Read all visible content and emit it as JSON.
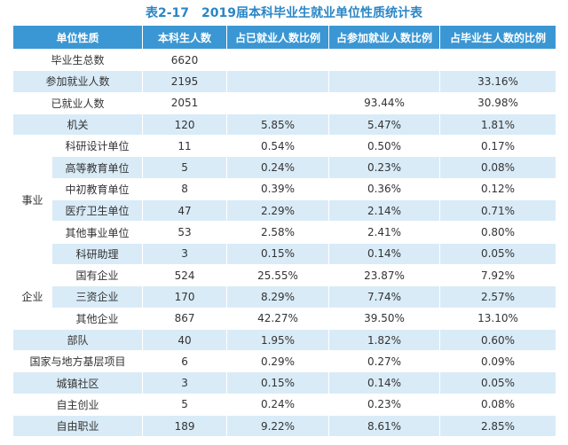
{
  "title": "表2-17　2019届本科毕业生就业单位性质统计表",
  "table": {
    "header": [
      "单位性质",
      "本科生人数",
      "占已就业人数比例",
      "占参加就业人数比例",
      "占毕业生人数的比例"
    ],
    "rows": [
      {
        "label": "毕业生总数",
        "cells": [
          "6620",
          null,
          null,
          null
        ]
      },
      {
        "label": "参加就业人数",
        "cells": [
          "2195",
          null,
          null,
          "33.16%"
        ]
      },
      {
        "label": "已就业人数",
        "cells": [
          "2051",
          null,
          "93.44%",
          "30.98%"
        ]
      },
      {
        "label": "机关",
        "cells": [
          "120",
          "5.85%",
          "5.47%",
          "1.81%"
        ]
      },
      {
        "group": "事业",
        "rows": [
          {
            "label": "科研设计单位",
            "cells": [
              "11",
              "0.54%",
              "0.50%",
              "0.17%"
            ]
          },
          {
            "label": "高等教育单位",
            "cells": [
              "5",
              "0.24%",
              "0.23%",
              "0.08%"
            ]
          },
          {
            "label": "中初教育单位",
            "cells": [
              "8",
              "0.39%",
              "0.36%",
              "0.12%"
            ]
          },
          {
            "label": "医疗卫生单位",
            "cells": [
              "47",
              "2.29%",
              "2.14%",
              "0.71%"
            ]
          },
          {
            "label": "其他事业单位",
            "cells": [
              "53",
              "2.58%",
              "2.41%",
              "0.80%"
            ]
          },
          {
            "label": "科研助理",
            "cells": [
              "3",
              "0.15%",
              "0.14%",
              "0.05%"
            ]
          }
        ]
      },
      {
        "group": "企业",
        "rows": [
          {
            "label": "国有企业",
            "cells": [
              "524",
              "25.55%",
              "23.87%",
              "7.92%"
            ]
          },
          {
            "label": "三资企业",
            "cells": [
              "170",
              "8.29%",
              "7.74%",
              "2.57%"
            ]
          },
          {
            "label": "其他企业",
            "cells": [
              "867",
              "42.27%",
              "39.50%",
              "13.10%"
            ]
          }
        ]
      },
      {
        "label": "部队",
        "cells": [
          "40",
          "1.95%",
          "1.82%",
          "0.60%"
        ]
      },
      {
        "label": "国家与地方基层项目",
        "cells": [
          "6",
          "0.29%",
          "0.27%",
          "0.09%"
        ]
      },
      {
        "label": "城镇社区",
        "cells": [
          "3",
          "0.15%",
          "0.14%",
          "0.05%"
        ]
      },
      {
        "label": "自主创业",
        "cells": [
          "5",
          "0.24%",
          "0.23%",
          "0.08%"
        ]
      },
      {
        "label": "自由职业",
        "cells": [
          "189",
          "9.22%",
          "8.61%",
          "2.85%"
        ]
      }
    ]
  }
}
